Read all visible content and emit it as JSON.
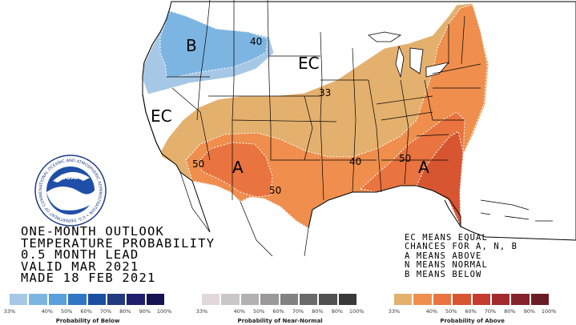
{
  "map_labels": {
    "below_region": "B",
    "above_region_west": "A",
    "above_region_southeast": "A",
    "ec_north": "EC",
    "ec_west": "EC",
    "contour_40_north": "40",
    "contour_33": "33",
    "contour_50_west": "50",
    "contour_50_south": "50",
    "contour_40_southeast": "40",
    "contour_50_southeast": "50"
  },
  "logo": {
    "center_text": "NOAA",
    "ring_text": "NATIONAL OCEANIC AND ATMOSPHERIC ADMINISTRATION • U.S. DEPARTMENT OF COMMERCE •"
  },
  "title_lines": [
    "ONE-MONTH OUTLOOK",
    "TEMPERATURE PROBABILITY",
    "0.5 MONTH LEAD",
    "VALID MAR 2021",
    "MADE 18 FEB 2021"
  ],
  "legend_notes": [
    "EC MEANS EQUAL",
    "CHANCES FOR A, N, B",
    "A MEANS ABOVE",
    "N MEANS NORMAL",
    "B MEANS BELOW"
  ],
  "scales": [
    {
      "name": "below",
      "title": "Probability of Below",
      "ticks": [
        "33%",
        "40%",
        "50%",
        "60%",
        "70%",
        "80%",
        "90%",
        "100%"
      ],
      "colors": [
        "#a6c8e6",
        "#7db5e2",
        "#5b9fdd",
        "#2f77c4",
        "#1c4fa0",
        "#233a7e",
        "#1f1f6e",
        "#141452"
      ]
    },
    {
      "name": "near-normal",
      "title": "Probability of Near-Normal",
      "ticks": [
        "33%",
        "40%",
        "50%",
        "60%",
        "70%",
        "80%",
        "90%",
        "100%"
      ],
      "colors": [
        "#e2d8da",
        "#cbc7c8",
        "#b3b0b1",
        "#9b999a",
        "#838283",
        "#6b6a6b",
        "#525152",
        "#3a393a"
      ]
    },
    {
      "name": "above",
      "title": "Probability of Above",
      "ticks": [
        "33%",
        "40%",
        "50%",
        "60%",
        "70%",
        "80%",
        "90%",
        "100%"
      ],
      "colors": [
        "#e4b06e",
        "#ef8e4d",
        "#e9743f",
        "#d85532",
        "#c33c2f",
        "#a32a2d",
        "#85222a",
        "#6a1c25"
      ]
    }
  ],
  "map_colors": {
    "below_33": "#a6c8e6",
    "below_40": "#7db5e2",
    "above_33": "#e4b06e",
    "above_40": "#ef8e4d",
    "above_50": "#e9743f",
    "above_60": "#d85532"
  }
}
